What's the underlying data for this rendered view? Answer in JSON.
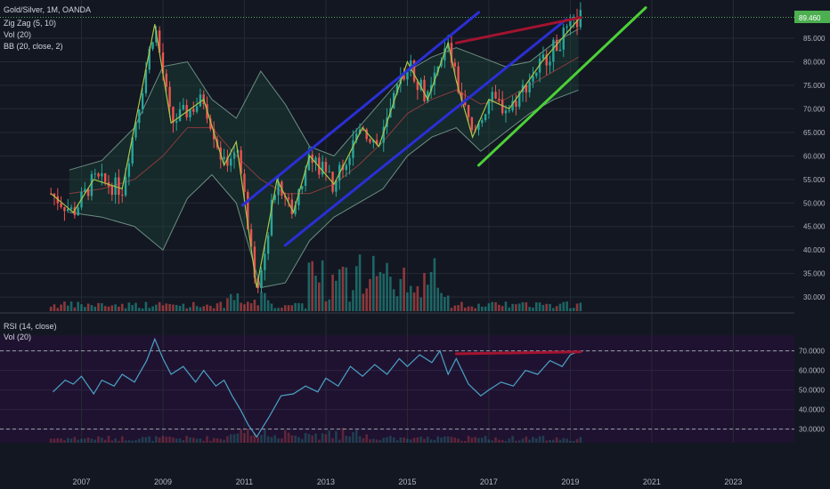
{
  "legend": {
    "title": "Gold/Silver, 1M, OANDA",
    "lines": [
      "Zig Zag (5, 10)",
      "Vol (20)",
      "BB (20, close, 2)"
    ]
  },
  "rsi_legend": {
    "lines": [
      "RSI (14, close)",
      "Vol (20)"
    ]
  },
  "price_tag": "89.460",
  "colors": {
    "background": "#131722",
    "grid": "#262a35",
    "rsi_panel": "#1f1230",
    "up": "#26a69a",
    "down": "#ef5350",
    "zigzag": "#a8c64a",
    "bands": "#6a8f80",
    "blue_channel": "#2a2fd6",
    "green_line": "#4cd137",
    "divergence": "#a3132f",
    "rsi_line": "#4aa3c8",
    "price_tag": "#4caf50"
  },
  "chart_data": [
    {
      "type": "candlestick",
      "title": "Gold/Silver, 1M, OANDA",
      "ylim": [
        27,
        92
      ],
      "xlim": [
        2005.0,
        2024.5
      ],
      "x_ticks": [
        "2007",
        "2009",
        "2011",
        "2013",
        "2015",
        "2017",
        "2019",
        "2021",
        "2023"
      ],
      "y_ticks": [
        "85.000",
        "80.000",
        "75.000",
        "70.000",
        "65.000",
        "60.000",
        "55.000",
        "50.000",
        "45.000",
        "40.000",
        "35.000",
        "30.000"
      ],
      "series": [
        {
          "name": "Zig Zag (5, 10)",
          "x": [
            2006.25,
            2006.8,
            2007.3,
            2008.0,
            2008.8,
            2009.2,
            2010.0,
            2010.5,
            2010.8,
            2011.3,
            2011.8,
            2012.2,
            2012.6,
            2013.2,
            2013.9,
            2014.3,
            2015.0,
            2015.5,
            2016.0,
            2016.2,
            2016.6,
            2017.0,
            2017.5,
            2018.3,
            2019.25
          ],
          "values": [
            52,
            48,
            55,
            53,
            88,
            67,
            72,
            58,
            63,
            32,
            55,
            48,
            60,
            54,
            66,
            62,
            80,
            72,
            84,
            76,
            64,
            72,
            70,
            80,
            89.5
          ]
        },
        {
          "name": "BB upper",
          "x": [
            2006.7,
            2007.5,
            2008.3,
            2009.0,
            2009.6,
            2010.2,
            2010.8,
            2011.4,
            2012.0,
            2012.6,
            2013.2,
            2013.8,
            2014.4,
            2015.0,
            2015.6,
            2016.2,
            2016.8,
            2017.4,
            2018.0,
            2018.6,
            2019.2
          ],
          "values": [
            57,
            59,
            66,
            79,
            80,
            72,
            68,
            78,
            71,
            62,
            60,
            66,
            72,
            78,
            81,
            83,
            81,
            79,
            80,
            84,
            87
          ]
        },
        {
          "name": "BB lower",
          "x": [
            2006.7,
            2007.5,
            2008.3,
            2009.0,
            2009.6,
            2010.2,
            2010.8,
            2011.4,
            2012.0,
            2012.6,
            2013.2,
            2013.8,
            2014.4,
            2015.0,
            2015.6,
            2016.2,
            2016.8,
            2017.4,
            2018.0,
            2018.6,
            2019.2
          ],
          "values": [
            48,
            47,
            45,
            40,
            51,
            56,
            50,
            32,
            33,
            42,
            47,
            50,
            53,
            60,
            64,
            66,
            61,
            65,
            69,
            72,
            74
          ]
        },
        {
          "name": "BB basis",
          "x": [
            2006.7,
            2007.5,
            2008.3,
            2009.0,
            2009.6,
            2010.2,
            2010.8,
            2011.4,
            2012.0,
            2012.6,
            2013.2,
            2013.8,
            2014.4,
            2015.0,
            2015.6,
            2016.2,
            2016.8,
            2017.4,
            2018.0,
            2018.6,
            2019.2
          ],
          "values": [
            52,
            53,
            55,
            60,
            66,
            66,
            60,
            55,
            52,
            52,
            54,
            58,
            63,
            69,
            72,
            74,
            71,
            72,
            75,
            78,
            81
          ]
        }
      ],
      "trendlines": [
        {
          "name": "channel upper",
          "color": "blue",
          "x": [
            2010.95,
            2016.75
          ],
          "values": [
            49.5,
            90.5
          ]
        },
        {
          "name": "channel lower",
          "color": "blue",
          "x": [
            2012.0,
            2018.9
          ],
          "values": [
            41,
            89
          ]
        },
        {
          "name": "green support",
          "color": "green",
          "x": [
            2016.75,
            2020.85
          ],
          "values": [
            58,
            91.5
          ]
        },
        {
          "name": "divergence",
          "color": "red",
          "x": [
            2016.2,
            2019.25
          ],
          "values": [
            84,
            89.4
          ]
        }
      ],
      "price_level": 89.46
    },
    {
      "type": "line",
      "title": "RSI (14, close)",
      "ylim": [
        23,
        78
      ],
      "y_ticks": [
        "70.0000",
        "60.0000",
        "50.0000",
        "40.0000",
        "30.0000"
      ],
      "levels": [
        70,
        30
      ],
      "series": [
        {
          "name": "RSI (14, close)",
          "x": [
            2006.3,
            2006.6,
            2006.8,
            2007.0,
            2007.3,
            2007.5,
            2007.8,
            2008.0,
            2008.3,
            2008.6,
            2008.8,
            2009.0,
            2009.2,
            2009.5,
            2009.8,
            2010.0,
            2010.3,
            2010.5,
            2010.7,
            2010.9,
            2011.1,
            2011.3,
            2011.6,
            2011.9,
            2012.2,
            2012.5,
            2012.8,
            2013.0,
            2013.3,
            2013.6,
            2013.9,
            2014.2,
            2014.5,
            2014.8,
            2015.0,
            2015.3,
            2015.6,
            2015.8,
            2016.0,
            2016.2,
            2016.5,
            2016.8,
            2017.0,
            2017.3,
            2017.6,
            2017.9,
            2018.2,
            2018.5,
            2018.8,
            2019.0,
            2019.25
          ],
          "values": [
            49,
            55,
            53,
            57,
            48,
            55,
            52,
            58,
            54,
            65,
            76,
            66,
            58,
            62,
            54,
            60,
            52,
            55,
            47,
            40,
            32,
            26,
            36,
            47,
            48,
            52,
            49,
            56,
            52,
            62,
            57,
            63,
            58,
            66,
            62,
            68,
            64,
            70,
            58,
            66,
            53,
            47,
            50,
            54,
            52,
            60,
            58,
            65,
            62,
            68,
            70
          ]
        }
      ]
    }
  ]
}
